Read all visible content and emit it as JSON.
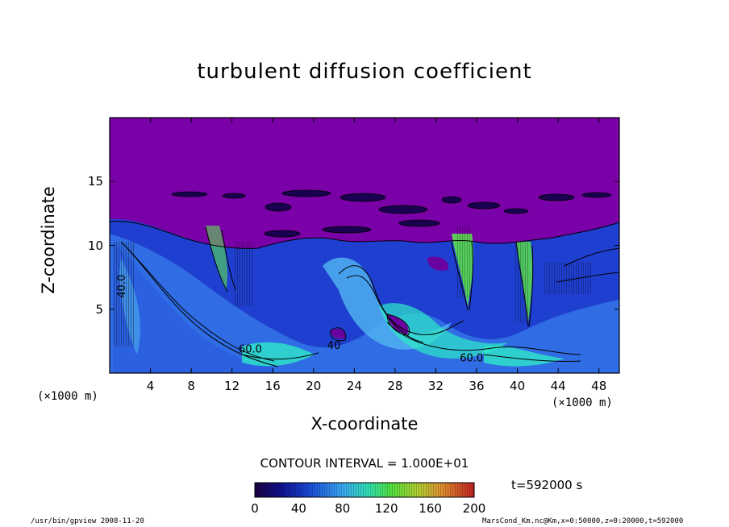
{
  "chart_data": {
    "type": "heatmap",
    "title": "turbulent diffusion coefficient",
    "xlabel": "X-coordinate",
    "ylabel": "Z-coordinate",
    "x_unit": "(×1000 m)",
    "y_unit": "(×1000 m)",
    "x_ticks": [
      "4",
      "8",
      "12",
      "16",
      "20",
      "24",
      "28",
      "32",
      "36",
      "40",
      "44",
      "48"
    ],
    "y_ticks": [
      "5",
      "10",
      "15"
    ],
    "xlim": [
      0,
      50
    ],
    "ylim": [
      0,
      20
    ],
    "contour_interval_label": "CONTOUR INTERVAL = 1.000E+01",
    "contour_labels": [
      {
        "text": "40.0",
        "x": 1.5,
        "z": 6.8,
        "rotate": -90
      },
      {
        "text": "60.0",
        "x": 13.8,
        "z": 1.6,
        "rotate": 0
      },
      {
        "text": "40",
        "x": 22.0,
        "z": 1.9,
        "rotate": 0
      },
      {
        "text": "60.0",
        "x": 35.5,
        "z": 0.9,
        "rotate": 0
      }
    ],
    "colorbar": {
      "ticks": [
        "0",
        "40",
        "80",
        "120",
        "160",
        "200"
      ],
      "range": [
        0,
        200
      ]
    },
    "time_label": "t=592000 s",
    "colors": {
      "background_field": "#7a00a8",
      "low": "#1e36c8",
      "mid": "#3b86f0",
      "high": "#2ee8c8",
      "peak": "#5ce050"
    }
  },
  "footer": {
    "left": "/usr/bin/gpview   2008-11-20",
    "right": "MarsCond_Km.nc@Km,x=0:50000,z=0:20000,t=592000"
  }
}
